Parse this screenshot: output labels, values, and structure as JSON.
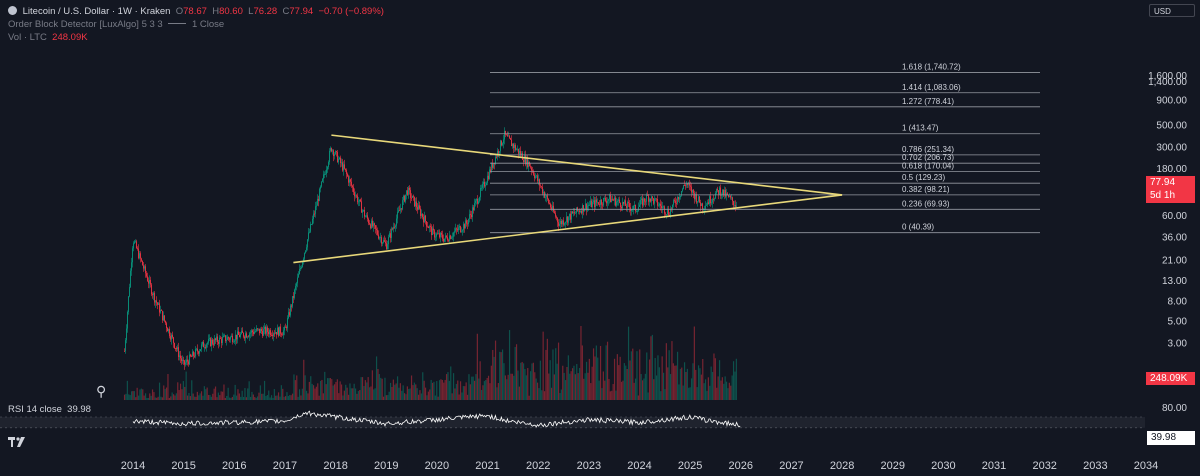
{
  "header": {
    "symbol_title": "Litecoin / U.S. Dollar · 1W · Kraken",
    "open_label": "O",
    "open_value": "78.67",
    "high_label": "H",
    "high_value": "80.60",
    "low_label": "L",
    "low_value": "76.28",
    "close_label": "C",
    "close_value": "77.94",
    "change_value": "−0.70 (−0.89%)",
    "indicator_line": "Order Block Detector [LuxAlgo] 5 3 3",
    "indicator_extra": "1 Close",
    "volume_label": "Vol · LTC",
    "volume_value": "248.09K"
  },
  "currency": "USD",
  "price_badge": {
    "price": "77.94",
    "countdown": "5d 1h"
  },
  "volume_badge": "248.09K",
  "rsi": {
    "label": "RSI 14 close",
    "value": "39.98",
    "badge": "39.98",
    "axis_label": "80.00"
  },
  "icons": {
    "symbol": "litecoin-icon",
    "logo": "tradingview-logo-icon",
    "dino": "dino-icon"
  },
  "colors": {
    "background": "#131722",
    "up": "#089981",
    "down": "#f23645",
    "trendline": "#e8d87a",
    "fib": "#9598a1",
    "rsi_line": "#ffffff",
    "rsi_band": "#2a2e39",
    "grid_text": "#d1d4dc"
  },
  "chart_data": [
    {
      "type": "candlestick",
      "title": "Litecoin / U.S. Dollar · 1W · Kraken",
      "y_scale": "log",
      "y_ticks": [
        "1,600.00",
        "1,400.00",
        "900.00",
        "500.00",
        "300.00",
        "180.00",
        "100.00",
        "60.00",
        "36.00",
        "21.00",
        "13.00",
        "8.00",
        "5.00",
        "3.00"
      ],
      "x_ticks": [
        "2014",
        "2015",
        "2016",
        "2017",
        "2018",
        "2019",
        "2020",
        "2021",
        "2022",
        "2023",
        "2024",
        "2025",
        "2026",
        "2027",
        "2028",
        "2029",
        "2030",
        "2031",
        "2032",
        "2033",
        "2034"
      ],
      "last_price": 77.94,
      "approx_weekly_close": {
        "x": [
          "2013-11",
          "2014-01",
          "2014-06",
          "2015-01",
          "2015-06",
          "2016-01",
          "2016-06",
          "2017-01",
          "2017-06",
          "2017-12",
          "2018-03",
          "2018-08",
          "2019-01",
          "2019-06",
          "2019-12",
          "2020-03",
          "2020-08",
          "2021-01",
          "2021-05",
          "2021-11",
          "2022-06",
          "2022-12",
          "2023-06",
          "2023-12",
          "2024-03",
          "2024-08",
          "2024-12",
          "2025-04",
          "2025-08",
          "2025-12"
        ],
        "y": [
          2.5,
          35,
          9,
          1.8,
          3,
          3.5,
          4,
          4,
          30,
          300,
          180,
          60,
          30,
          110,
          40,
          35,
          50,
          150,
          400,
          200,
          50,
          75,
          90,
          70,
          95,
          65,
          130,
          75,
          110,
          77.94
        ]
      },
      "volume_label": "Vol · LTC",
      "last_volume": "248.09K",
      "fib_levels": [
        {
          "ratio": 1.618,
          "label": "1.618 (1,740.72)",
          "value": 1740.72
        },
        {
          "ratio": 1.414,
          "label": "1.414 (1,083.06)",
          "value": 1083.06
        },
        {
          "ratio": 1.272,
          "label": "1.272 (778.41)",
          "value": 778.41
        },
        {
          "ratio": 1,
          "label": "1 (413.47)",
          "value": 413.47
        },
        {
          "ratio": 0.786,
          "label": "0.786 (251.34)",
          "value": 251.34
        },
        {
          "ratio": 0.702,
          "label": "0.702 (206.73)",
          "value": 206.73
        },
        {
          "ratio": 0.618,
          "label": "0.618 (170.04)",
          "value": 170.04
        },
        {
          "ratio": 0.5,
          "label": "0.5 (129.23)",
          "value": 129.23
        },
        {
          "ratio": 0.382,
          "label": "0.382 (98.21)",
          "value": 98.21
        },
        {
          "ratio": 0.236,
          "label": "0.236 (69.93)",
          "value": 69.93
        },
        {
          "ratio": 0,
          "label": "0 (40.39)",
          "value": 40.39
        }
      ],
      "trendlines": [
        {
          "name": "upper",
          "x": [
            "2017-12",
            "2028-01"
          ],
          "y": [
            400,
            98
          ]
        },
        {
          "name": "lower",
          "x": [
            "2017-03",
            "2028-01"
          ],
          "y": [
            20,
            98
          ]
        }
      ]
    },
    {
      "type": "line",
      "title": "RSI 14 close",
      "last_value": 39.98,
      "y_ticks": [
        "80.00"
      ],
      "approx_x": [
        "2014",
        "2015",
        "2016",
        "2017",
        "2017-06",
        "2018",
        "2019",
        "2020",
        "2021",
        "2021-06",
        "2022",
        "2023",
        "2024",
        "2025",
        "2025-06",
        "2026"
      ],
      "approx_values": [
        55,
        45,
        50,
        55,
        85,
        70,
        45,
        60,
        75,
        55,
        40,
        60,
        50,
        70,
        55,
        40
      ]
    }
  ]
}
